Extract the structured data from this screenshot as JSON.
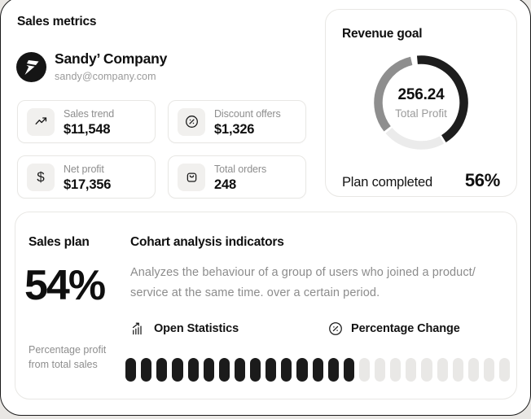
{
  "header": {
    "title": "Sales metrics"
  },
  "company": {
    "name": "Sandy’ Company",
    "email": "sandy@company.com",
    "logo_bg": "#151515"
  },
  "metrics": [
    {
      "label": "Sales trend",
      "value": "$11,548",
      "icon": "trend-up-icon"
    },
    {
      "label": "Discount offers",
      "value": "$1,326",
      "icon": "percent-circle-icon"
    },
    {
      "label": "Net profit",
      "value": "$17,356",
      "icon": "dollar-icon"
    },
    {
      "label": "Total orders",
      "value": "248",
      "icon": "shopping-bag-icon"
    }
  ],
  "revenue_goal": {
    "title": "Revenue goal",
    "center_value": "256.24",
    "center_label": "Total Profit",
    "footer_label": "Plan completed",
    "footer_value": "56%",
    "donut": {
      "stroke_width": 10.5,
      "segments": [
        {
          "name": "completed",
          "color": "#1d1d1d",
          "start_deg": -5,
          "end_deg": 148
        },
        {
          "name": "remaining",
          "color": "#ebebeb",
          "start_deg": 151,
          "end_deg": 229
        },
        {
          "name": "secondary",
          "color": "#8e8e8e",
          "start_deg": 232,
          "end_deg": 347
        }
      ]
    }
  },
  "sales_plan": {
    "title": "Sales plan",
    "value": "54%",
    "caption": "Percentage profit from total sales"
  },
  "cohort": {
    "title": "Cohart analysis indicators",
    "description": "Analyzes the behaviour of a group of users who joined a product/ service at the same time. over a certain period.",
    "actions": [
      {
        "label": "Open Statistics",
        "icon": "bar-chart-icon"
      },
      {
        "label": "Percentage Change",
        "icon": "percent-circle-icon"
      }
    ],
    "progress": {
      "total": 25,
      "filled": 15,
      "filled_color": "#1b1b1b",
      "empty_color": "#e9e8e6"
    }
  }
}
